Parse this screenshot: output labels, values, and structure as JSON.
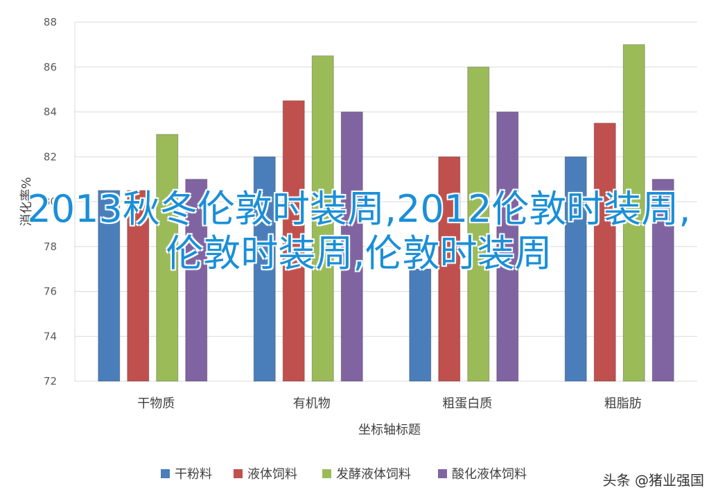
{
  "chart_data": {
    "type": "bar",
    "categories": [
      "干物质",
      "有机物",
      "粗蛋白质",
      "粗脂肪"
    ],
    "series": [
      {
        "name": "干粉料",
        "color": "#4a7ebb",
        "values": [
          80.5,
          82,
          77,
          82
        ]
      },
      {
        "name": "液体饲料",
        "color": "#c0504d",
        "values": [
          80.5,
          84.5,
          82,
          83.5
        ]
      },
      {
        "name": "发酵液体饲料",
        "color": "#9bbb59",
        "values": [
          83,
          86.5,
          86,
          87
        ]
      },
      {
        "name": "酸化液体饲料",
        "color": "#8064a2",
        "values": [
          81,
          84,
          84,
          81
        ]
      }
    ],
    "yticks": [
      72,
      74,
      76,
      78,
      80,
      82,
      84,
      86,
      88
    ],
    "ylim": [
      72,
      88
    ],
    "xlabel": "坐标轴标题",
    "ylabel": "消化率%",
    "legend_position": "bottom",
    "grid": true
  },
  "overlay_text": "2013秋冬伦敦时装周,2012伦敦时装周,伦敦时装周,伦敦时装周",
  "watermark": "头条 @猪业强国"
}
